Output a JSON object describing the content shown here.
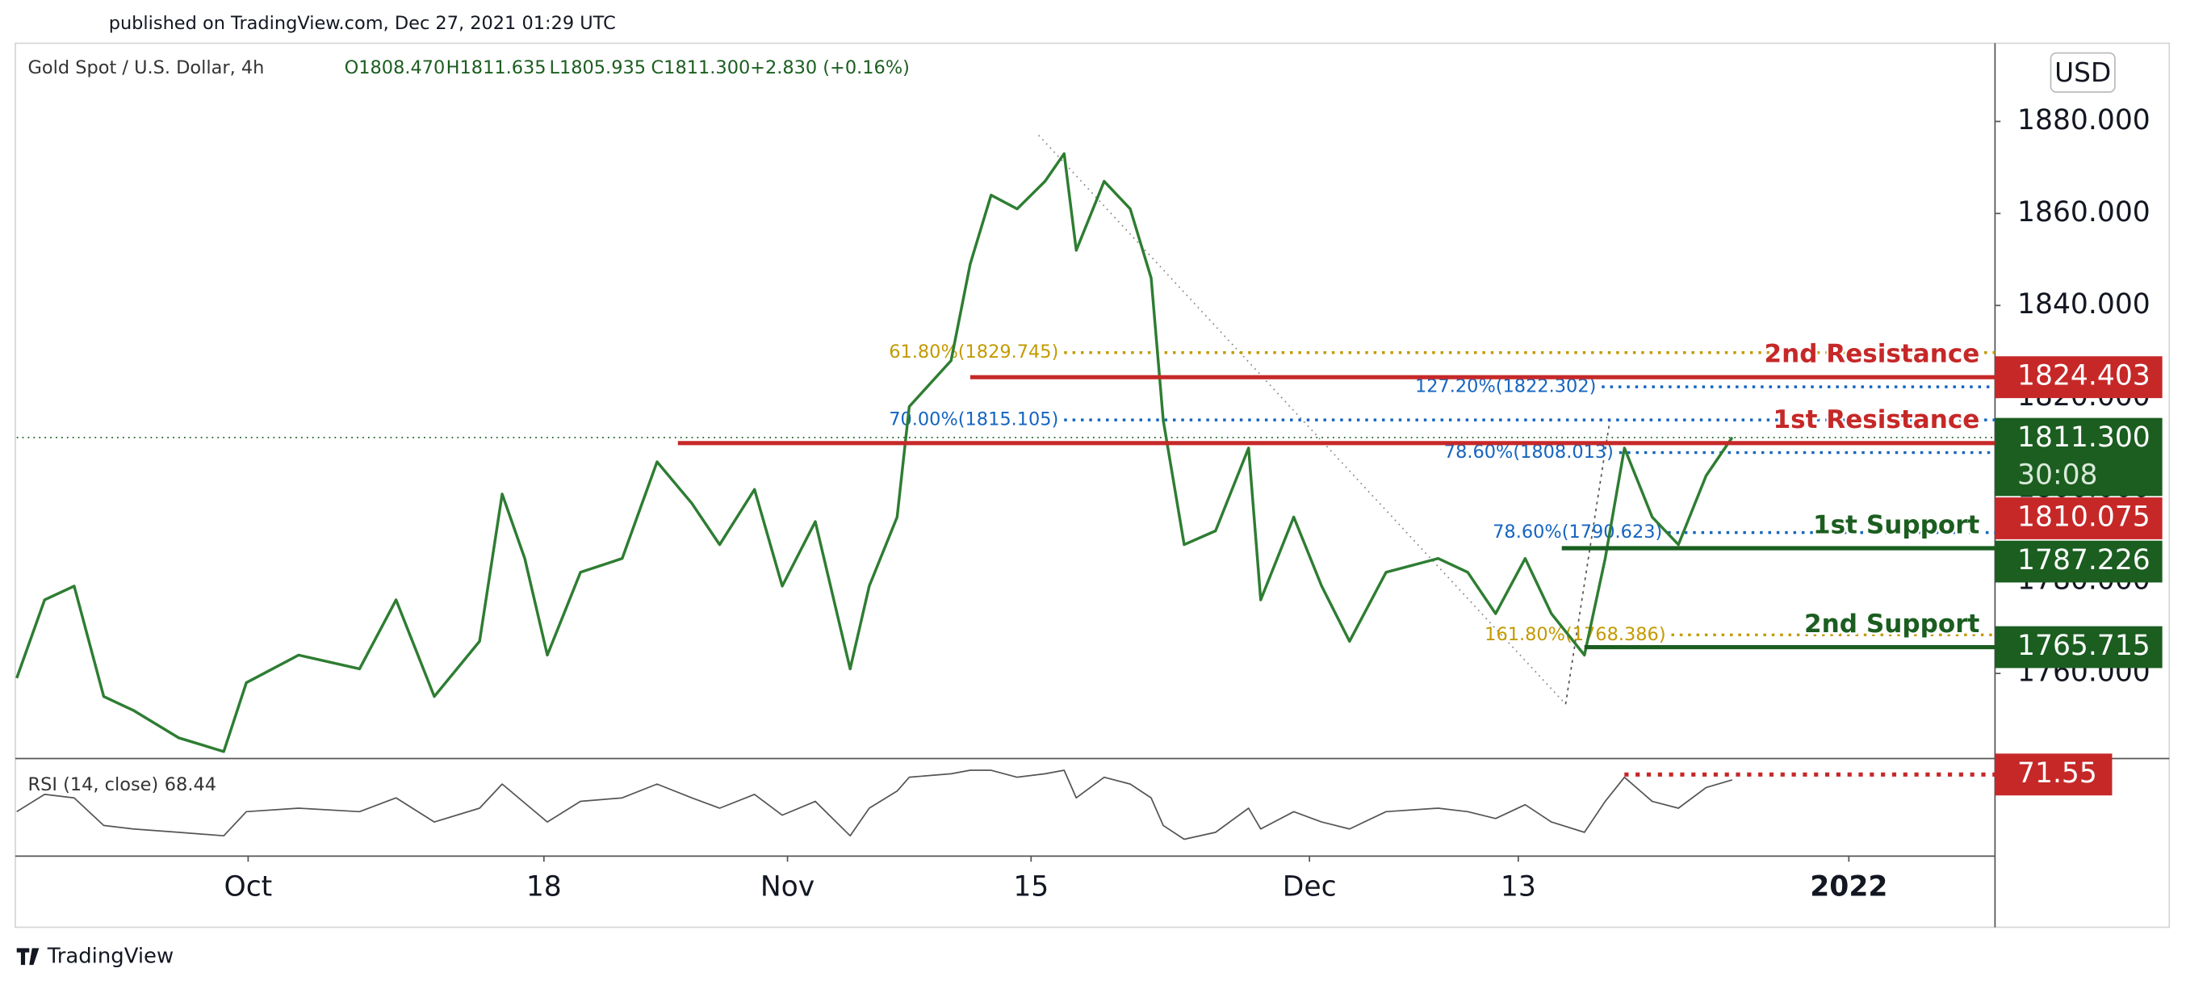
{
  "header": {
    "published": "published on TradingView.com, Dec 27, 2021 01:29 UTC",
    "symbol": "Gold Spot / U.S. Dollar, 4h",
    "ohlc": [
      "O1808.470",
      "H1811.635",
      "L1805.935",
      "C1811.300"
    ],
    "change": "+2.830 (+0.16%)",
    "currency": "USD",
    "brand": "TradingView"
  },
  "chart_data": [
    {
      "type": "line",
      "title": "Gold Spot / U.S. Dollar, 4h",
      "x": [
        260.7,
        262.3,
        264.0,
        265.7,
        267.4,
        270.0,
        272.6,
        273.9,
        276.9,
        280.4,
        282.5,
        284.7,
        287.3,
        288.6,
        289.9,
        291.2,
        293.1,
        295.5,
        297.5,
        299.5,
        301.1,
        303.1,
        304.7,
        306.6,
        308.6,
        309.7,
        311.3,
        312.0,
        314.4,
        315.5,
        316.7,
        318.2,
        319.8,
        320.9,
        321.6,
        323.2,
        324.7,
        325.9,
        326.6,
        327.8,
        329.6,
        331.5,
        332.2,
        334.1,
        335.7,
        337.3,
        339.4,
        342.4,
        344.1,
        345.7,
        347.4,
        348.9,
        350.8,
        352.0,
        353.1,
        354.7,
        356.2,
        357.8,
        359.3
      ],
      "series": [
        {
          "name": "Gold Spot / U.S. Dollar",
          "color": "#2e7d32",
          "values": [
            1759,
            1776,
            1779,
            1755,
            1752,
            1746,
            1743,
            1758,
            1764,
            1761,
            1776,
            1755,
            1767,
            1799,
            1785,
            1764,
            1782,
            1785,
            1806,
            1797,
            1788,
            1800,
            1779,
            1793,
            1761,
            1779,
            1794,
            1818,
            1828,
            1849,
            1864,
            1861,
            1867,
            1873,
            1852,
            1867,
            1861,
            1846,
            1815,
            1788,
            1791,
            1809,
            1776,
            1794,
            1779,
            1767,
            1782,
            1785,
            1782,
            1773,
            1785,
            1773,
            1764,
            1785,
            1809,
            1794,
            1788,
            1803,
            1811.3
          ]
        }
      ],
      "xlim": [
        260.7,
        374.4
      ],
      "xticks": [
        {
          "value": 274,
          "label": "Oct"
        },
        {
          "value": 291,
          "label": "18"
        },
        {
          "value": 305,
          "label": "Nov"
        },
        {
          "value": 319,
          "label": "15"
        },
        {
          "value": 335,
          "label": "Dec"
        },
        {
          "value": 347,
          "label": "13"
        },
        {
          "value": 366,
          "label": "2022"
        }
      ],
      "ylim": [
        1741.8,
        1896.4
      ],
      "yticks": [
        {
          "value": 1760,
          "label": "1760.000"
        },
        {
          "value": 1780,
          "label": "1780.000"
        },
        {
          "value": 1800,
          "label": "1800.000"
        },
        {
          "value": 1820,
          "label": "1820.000"
        },
        {
          "value": 1840,
          "label": "1840.000"
        },
        {
          "value": 1860,
          "label": "1860.000"
        },
        {
          "value": 1880,
          "label": "1880.000"
        }
      ],
      "grid": false,
      "last": {
        "value": 1811.3,
        "label": "1811.300",
        "countdown": "30:08",
        "color": "#1b5e20"
      },
      "levels": [
        {
          "name": "2nd Resistance",
          "value": 1824.403,
          "start": 315.5,
          "color": "#c62828"
        },
        {
          "name": "1st Resistance",
          "value": 1810.075,
          "start": 298.7,
          "color": "#c62828"
        },
        {
          "name": "1st Support",
          "value": 1787.226,
          "start": 349.5,
          "color": "#1b5e20"
        },
        {
          "name": "2nd Support",
          "value": 1765.715,
          "start": 350.8,
          "color": "#1b5e20"
        }
      ],
      "fibs": [
        {
          "label": "61.80%(1829.745)",
          "value": 1829.745,
          "start": 320.9,
          "color": "#c49a00"
        },
        {
          "label": "127.20%(1822.302)",
          "value": 1822.302,
          "start": 351.8,
          "color": "#1565c0"
        },
        {
          "label": "70.00%(1815.105)",
          "value": 1815.105,
          "start": 320.9,
          "color": "#1565c0"
        },
        {
          "label": "78.60%(1808.013)",
          "value": 1808.013,
          "start": 352.8,
          "color": "#1565c0"
        },
        {
          "label": "78.60%(1790.623)",
          "value": 1790.623,
          "start": 355.6,
          "color": "#1565c0"
        },
        {
          "label": "161.80%(1768.386)",
          "value": 1768.386,
          "start": 355.8,
          "color": "#c49a00"
        }
      ]
    },
    {
      "type": "line",
      "title": "RSI (14, close)",
      "x": [
        260.7,
        262.3,
        264.0,
        265.7,
        267.4,
        270.0,
        272.6,
        273.9,
        276.9,
        280.4,
        282.5,
        284.7,
        287.3,
        288.6,
        289.9,
        291.2,
        293.1,
        295.5,
        297.5,
        299.5,
        301.1,
        303.1,
        304.7,
        306.6,
        308.6,
        309.7,
        311.3,
        312.0,
        314.4,
        315.5,
        316.7,
        318.2,
        319.8,
        320.9,
        321.6,
        323.2,
        324.7,
        325.9,
        326.6,
        327.8,
        329.6,
        331.5,
        332.2,
        334.1,
        335.7,
        337.3,
        339.4,
        342.4,
        344.1,
        345.7,
        347.4,
        348.9,
        350.8,
        352.0,
        353.1,
        354.7,
        356.2,
        357.8,
        359.3
      ],
      "values": [
        50,
        60,
        58,
        42,
        40,
        38,
        36,
        50,
        52,
        50,
        58,
        44,
        52,
        66,
        55,
        44,
        56,
        58,
        66,
        58,
        52,
        60,
        48,
        56,
        36,
        52,
        62,
        70,
        72,
        74,
        74,
        70,
        72,
        74,
        58,
        70,
        66,
        58,
        42,
        34,
        38,
        52,
        40,
        50,
        44,
        40,
        50,
        52,
        50,
        46,
        54,
        44,
        38,
        56,
        70,
        56,
        52,
        64,
        68.44
      ],
      "color": "#555555",
      "xlim": [
        260.7,
        374.4
      ],
      "ylim": [
        25,
        80
      ],
      "level": {
        "value": 71.55,
        "start": 353.1,
        "color": "#c62828"
      }
    }
  ]
}
